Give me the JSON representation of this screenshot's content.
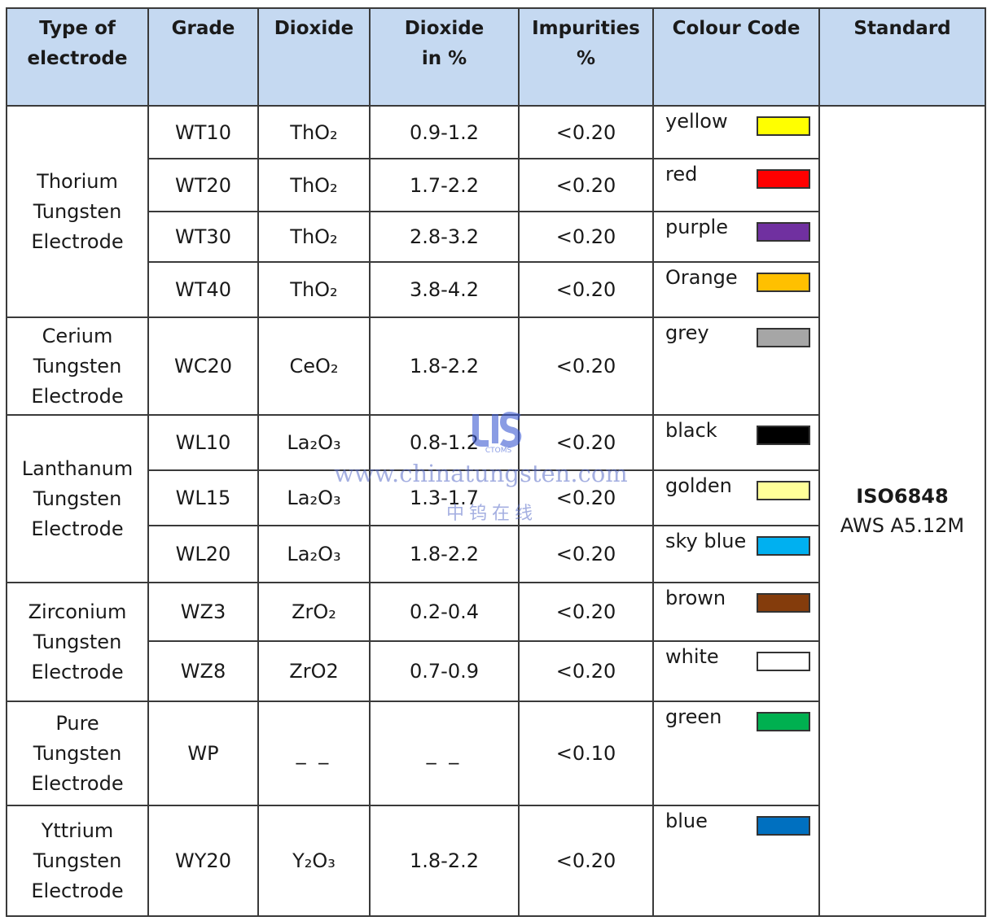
{
  "headers": [
    "Type of\nelectrode",
    "Grade",
    "Dioxide",
    "Dioxide\nin %",
    "Impurities\n%",
    "Colour Code",
    "Standard"
  ],
  "groups": [
    {
      "type": "Thorium\nTungsten\nElectrode",
      "rows": [
        {
          "grade": "WT10",
          "dioxide": "ThO₂",
          "percent": "0.9-1.2",
          "impurities": "<0.20",
          "colour": "yellow",
          "hex": "#ffff00"
        },
        {
          "grade": "WT20",
          "dioxide": "ThO₂",
          "percent": "1.7-2.2",
          "impurities": "<0.20",
          "colour": "red",
          "hex": "#ff0000"
        },
        {
          "grade": "WT30",
          "dioxide": "ThO₂",
          "percent": "2.8-3.2",
          "impurities": "<0.20",
          "colour": "purple",
          "hex": "#7030a0"
        },
        {
          "grade": "WT40",
          "dioxide": "ThO₂",
          "percent": "3.8-4.2",
          "impurities": "<0.20",
          "colour": "Orange",
          "hex": "#ffc000"
        }
      ]
    },
    {
      "type": "Cerium\nTungsten\nElectrode",
      "rows": [
        {
          "grade": "WC20",
          "dioxide": "CeO₂",
          "percent": "1.8-2.2",
          "impurities": "<0.20",
          "colour": "grey",
          "hex": "#a6a6a6"
        }
      ]
    },
    {
      "type": "Lanthanum\nTungsten\nElectrode",
      "rows": [
        {
          "grade": "WL10",
          "dioxide": "La₂O₃",
          "percent": "0.8-1.2",
          "impurities": "<0.20",
          "colour": "black",
          "hex": "#000000"
        },
        {
          "grade": "WL15",
          "dioxide": "La₂O₃",
          "percent": "1.3-1.7",
          "impurities": "<0.20",
          "colour": "golden",
          "hex": "#ffff99"
        },
        {
          "grade": "WL20",
          "dioxide": "La₂O₃",
          "percent": "1.8-2.2",
          "impurities": "<0.20",
          "colour": "sky blue",
          "hex": "#00b0f0"
        }
      ]
    },
    {
      "type": "Zirconium\nTungsten\nElectrode",
      "rows": [
        {
          "grade": "WZ3",
          "dioxide": "ZrO₂",
          "percent": "0.2-0.4",
          "impurities": "<0.20",
          "colour": "brown",
          "hex": "#843c0c"
        },
        {
          "grade": "WZ8",
          "dioxide": "ZrO2",
          "percent": "0.7-0.9",
          "impurities": "<0.20",
          "colour": "white",
          "hex": "#ffffff"
        }
      ]
    },
    {
      "type": "Pure\nTungsten\nElectrode",
      "rows": [
        {
          "grade": "WP",
          "dioxide": "_ _",
          "percent": "_ _",
          "impurities": "<0.10",
          "colour": "green",
          "hex": "#00b050"
        }
      ]
    },
    {
      "type": "Yttrium\nTungsten\nElectrode",
      "rows": [
        {
          "grade": "WY20",
          "dioxide": "Y₂O₃",
          "percent": "1.8-2.2",
          "impurities": "<0.20",
          "colour": "blue",
          "hex": "#0070c0"
        }
      ]
    }
  ],
  "standard": {
    "line1": "ISO6848",
    "line2": "AWS A5.12M"
  },
  "watermark": {
    "logo_text": "CTOMS",
    "url": "www.chinatungsten.com",
    "chinese": "中钨在线"
  }
}
